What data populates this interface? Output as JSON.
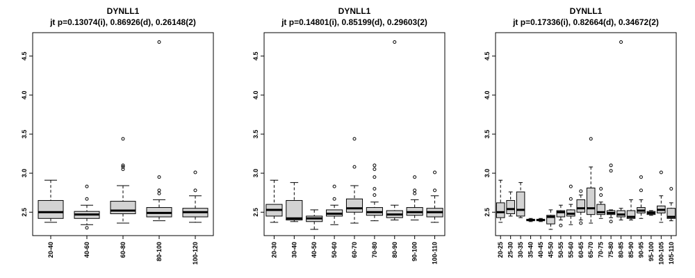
{
  "chart_data": [
    {
      "type": "box",
      "title": "DYNLL1",
      "subtitle": "jt p=0.13074(i), 0.86926(d), 0.26148(2)",
      "ylim": [
        2.2,
        4.8
      ],
      "yticks": [
        "2.5",
        "3.0",
        "3.5",
        "4.0",
        "4.5"
      ],
      "categories": [
        "20-40",
        "40-60",
        "60-80",
        "80-100",
        "100-120"
      ],
      "boxes": [
        {
          "min": 2.37,
          "q1": 2.42,
          "median": 2.5,
          "q3": 2.65,
          "max": 2.91,
          "outliers": []
        },
        {
          "min": 2.34,
          "q1": 2.42,
          "median": 2.47,
          "q3": 2.51,
          "max": 2.59,
          "outliers": [
            2.3,
            2.67,
            2.83
          ]
        },
        {
          "min": 2.36,
          "q1": 2.48,
          "median": 2.52,
          "q3": 2.64,
          "max": 2.84,
          "outliers": [
            3.05,
            3.08,
            3.1,
            3.44
          ]
        },
        {
          "min": 2.39,
          "q1": 2.44,
          "median": 2.49,
          "q3": 2.56,
          "max": 2.66,
          "outliers": [
            2.74,
            2.78,
            2.95,
            4.68
          ]
        },
        {
          "min": 2.37,
          "q1": 2.44,
          "median": 2.5,
          "q3": 2.55,
          "max": 2.71,
          "outliers": [
            2.78,
            3.01
          ]
        }
      ]
    },
    {
      "type": "box",
      "title": "DYNLL1",
      "subtitle": "jt p=0.14801(i), 0.85199(d), 0.29603(2)",
      "ylim": [
        2.2,
        4.8
      ],
      "yticks": [
        "2.5",
        "3.0",
        "3.5",
        "4.0",
        "4.5"
      ],
      "categories": [
        "20-30",
        "30-40",
        "40-50",
        "50-60",
        "60-70",
        "70-80",
        "80-90",
        "90-100",
        "100-110"
      ],
      "boxes": [
        {
          "min": 2.37,
          "q1": 2.45,
          "median": 2.53,
          "q3": 2.6,
          "max": 2.91,
          "outliers": []
        },
        {
          "min": 2.38,
          "q1": 2.4,
          "median": 2.42,
          "q3": 2.65,
          "max": 2.88,
          "outliers": []
        },
        {
          "min": 2.28,
          "q1": 2.38,
          "median": 2.42,
          "q3": 2.45,
          "max": 2.53,
          "outliers": []
        },
        {
          "min": 2.34,
          "q1": 2.45,
          "median": 2.48,
          "q3": 2.53,
          "max": 2.59,
          "outliers": [
            2.67,
            2.83
          ]
        },
        {
          "min": 2.36,
          "q1": 2.5,
          "median": 2.55,
          "q3": 2.67,
          "max": 2.84,
          "outliers": [
            3.08,
            3.44
          ]
        },
        {
          "min": 2.39,
          "q1": 2.46,
          "median": 2.5,
          "q3": 2.56,
          "max": 2.63,
          "outliers": [
            2.72,
            2.8,
            2.95,
            3.05,
            3.1
          ]
        },
        {
          "min": 2.4,
          "q1": 2.43,
          "median": 2.47,
          "q3": 2.52,
          "max": 2.59,
          "outliers": [
            4.68
          ]
        },
        {
          "min": 2.4,
          "q1": 2.46,
          "median": 2.5,
          "q3": 2.56,
          "max": 2.66,
          "outliers": [
            2.74,
            2.78,
            2.95
          ]
        },
        {
          "min": 2.37,
          "q1": 2.44,
          "median": 2.5,
          "q3": 2.55,
          "max": 2.71,
          "outliers": [
            2.78,
            3.01
          ]
        }
      ]
    },
    {
      "type": "box",
      "title": "DYNLL1",
      "subtitle": "jt p=0.17336(i), 0.82664(d), 0.34672(2)",
      "ylim": [
        2.2,
        4.8
      ],
      "yticks": [
        "2.5",
        "3.0",
        "3.5",
        "4.0",
        "4.5"
      ],
      "categories": [
        "20-25",
        "25-30",
        "30-35",
        "35-40",
        "40-45",
        "45-50",
        "50-55",
        "55-60",
        "60-65",
        "65-70",
        "70-75",
        "75-80",
        "80-85",
        "85-90",
        "90-95",
        "95-100",
        "100-105",
        "105-110"
      ],
      "boxes": [
        {
          "min": 2.37,
          "q1": 2.43,
          "median": 2.5,
          "q3": 2.62,
          "max": 2.91,
          "outliers": []
        },
        {
          "min": 2.45,
          "q1": 2.48,
          "median": 2.54,
          "q3": 2.65,
          "max": 2.76,
          "outliers": []
        },
        {
          "min": 2.43,
          "q1": 2.45,
          "median": 2.53,
          "q3": 2.76,
          "max": 2.88,
          "outliers": []
        },
        {
          "min": 2.38,
          "q1": 2.39,
          "median": 2.4,
          "q3": 2.41,
          "max": 2.42,
          "outliers": []
        },
        {
          "min": 2.38,
          "q1": 2.39,
          "median": 2.4,
          "q3": 2.41,
          "max": 2.42,
          "outliers": []
        },
        {
          "min": 2.28,
          "q1": 2.35,
          "median": 2.44,
          "q3": 2.46,
          "max": 2.53,
          "outliers": []
        },
        {
          "min": 2.4,
          "q1": 2.44,
          "median": 2.5,
          "q3": 2.52,
          "max": 2.59,
          "outliers": [
            2.33
          ]
        },
        {
          "min": 2.34,
          "q1": 2.45,
          "median": 2.48,
          "q3": 2.53,
          "max": 2.6,
          "outliers": [
            2.67,
            2.83
          ]
        },
        {
          "min": 2.4,
          "q1": 2.5,
          "median": 2.55,
          "q3": 2.66,
          "max": 2.72,
          "outliers": [
            2.36,
            2.77
          ]
        },
        {
          "min": 2.36,
          "q1": 2.47,
          "median": 2.55,
          "q3": 2.81,
          "max": 3.08,
          "outliers": [
            3.44
          ]
        },
        {
          "min": 2.42,
          "q1": 2.47,
          "median": 2.5,
          "q3": 2.6,
          "max": 2.63,
          "outliers": [
            2.72,
            2.8
          ]
        },
        {
          "min": 2.43,
          "q1": 2.47,
          "median": 2.49,
          "q3": 2.52,
          "max": 2.53,
          "outliers": [
            2.38,
            3.03,
            3.1
          ]
        },
        {
          "min": 2.4,
          "q1": 2.44,
          "median": 2.47,
          "q3": 2.52,
          "max": 2.55,
          "outliers": [
            4.68
          ]
        },
        {
          "min": 2.4,
          "q1": 2.42,
          "median": 2.44,
          "q3": 2.52,
          "max": 2.66,
          "outliers": []
        },
        {
          "min": 2.42,
          "q1": 2.49,
          "median": 2.52,
          "q3": 2.56,
          "max": 2.66,
          "outliers": [
            2.78,
            2.95
          ]
        },
        {
          "min": 2.46,
          "q1": 2.47,
          "median": 2.49,
          "q3": 2.51,
          "max": 2.52,
          "outliers": []
        },
        {
          "min": 2.37,
          "q1": 2.49,
          "median": 2.53,
          "q3": 2.58,
          "max": 2.71,
          "outliers": [
            3.01
          ]
        },
        {
          "min": 2.39,
          "q1": 2.42,
          "median": 2.44,
          "q3": 2.55,
          "max": 2.62,
          "outliers": [
            2.8
          ]
        }
      ]
    }
  ],
  "colors": {
    "box_fill": "#d3d3d3",
    "stroke": "#000000",
    "background": "#ffffff"
  }
}
